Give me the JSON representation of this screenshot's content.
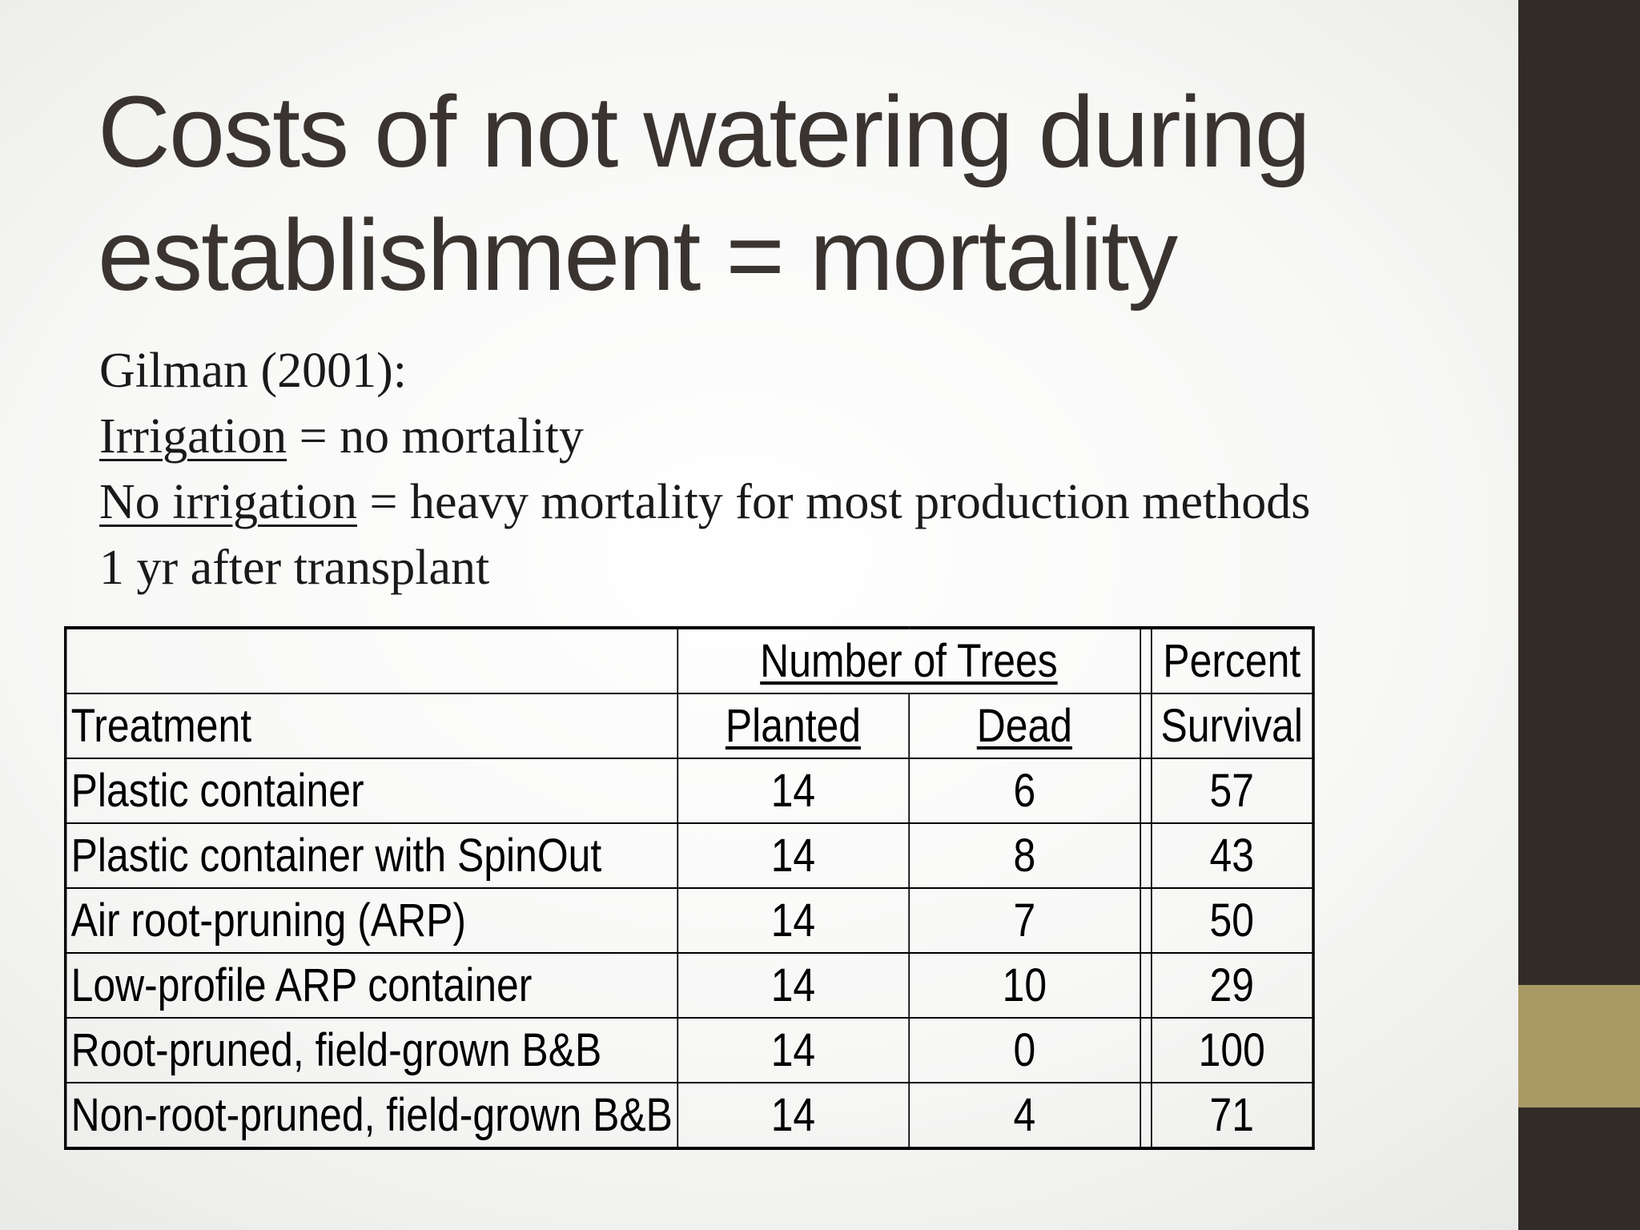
{
  "slide": {
    "title_line1": "Costs of not watering during",
    "title_line2": "establishment = mortality",
    "citation": "Gilman (2001):",
    "irrigation_label": "Irrigation",
    "irrigation_text": " = no mortality",
    "no_irrigation_label": "No irrigation",
    "no_irrigation_text": " = heavy mortality for most production methods",
    "timeframe": "1 yr after transplant",
    "colors": {
      "sidebar": "#322c28",
      "accent": "#a89965",
      "title": "#3a3431"
    }
  },
  "table": {
    "group_header": "Number of Trees",
    "percent_header": "Percent",
    "col_treatment": "Treatment",
    "col_planted": "Planted",
    "col_dead": "Dead",
    "col_survival": "Survival",
    "rows": [
      {
        "treatment": "Plastic container",
        "planted": "14",
        "dead": "6",
        "survival": "57"
      },
      {
        "treatment": "Plastic container with SpinOut",
        "planted": "14",
        "dead": "8",
        "survival": "43"
      },
      {
        "treatment": "Air root-pruning (ARP)",
        "planted": "14",
        "dead": "7",
        "survival": "50"
      },
      {
        "treatment": "Low-profile ARP container",
        "planted": "14",
        "dead": "10",
        "survival": "29"
      },
      {
        "treatment": "Root-pruned, field-grown B&B",
        "planted": "14",
        "dead": "0",
        "survival": "100"
      },
      {
        "treatment": "Non-root-pruned, field-grown B&B",
        "planted": "14",
        "dead": "4",
        "survival": "71"
      }
    ]
  }
}
